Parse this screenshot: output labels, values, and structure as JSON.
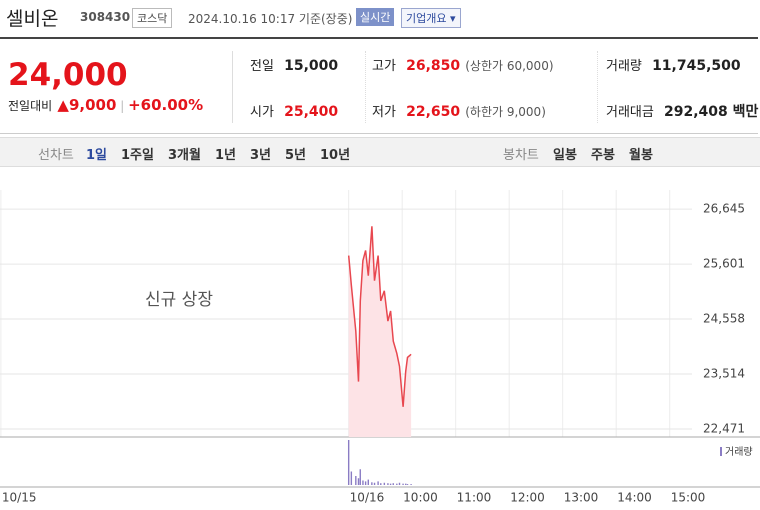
{
  "header": {
    "name": "셀비온",
    "code": "308430",
    "market": "코스닥",
    "timestamp": "2024.10.16 10:17 기준(장중)",
    "realtime": "실시간",
    "company": "기업개요"
  },
  "quote": {
    "price": "24,000",
    "change_label": "전일대비",
    "change": "9,000",
    "change_pct": "+60.00%"
  },
  "stats": [
    {
      "label": "전일",
      "value": "15,000"
    },
    {
      "label": "고가",
      "value": "26,850",
      "note": "(상한가 60,000)"
    },
    {
      "label": "거래량",
      "value": "11,745,500"
    },
    {
      "label": "시가",
      "value": "25,400"
    },
    {
      "label": "저가",
      "value": "22,650",
      "note": "(하한가 9,000)"
    },
    {
      "label": "거래대금",
      "value": "292,408 백만"
    }
  ],
  "tabs": {
    "line_label": "선차트",
    "line": [
      "1일",
      "1주일",
      "3개월",
      "1년",
      "3년",
      "5년",
      "10년"
    ],
    "candle_label": "봉차트",
    "candle": [
      "일봉",
      "주봉",
      "월봉"
    ]
  },
  "chart_data": [
    {
      "type": "line",
      "annotation": "신규 상장",
      "color": "#e8474f",
      "area_color": "#fde3e6",
      "x": [
        0,
        3,
        8,
        11,
        13,
        16,
        19,
        22,
        26,
        29,
        33,
        36,
        40,
        44,
        47,
        50,
        54,
        57,
        61,
        64,
        66,
        70
      ],
      "values": [
        25764,
        25190,
        24328,
        23371,
        24903,
        25668,
        25860,
        25381,
        26320,
        25286,
        25764,
        24903,
        25094,
        24520,
        24711,
        24137,
        23907,
        23658,
        22892,
        23562,
        23830,
        23888
      ],
      "xlim": [
        -391,
        385
      ],
      "xticks": [
        {
          "value": -390,
          "label": "10/15"
        },
        {
          "value": 0,
          "label": "10/16"
        },
        {
          "value": 60,
          "label": "10:00"
        },
        {
          "value": 120,
          "label": "11:00"
        },
        {
          "value": 180,
          "label": "12:00"
        },
        {
          "value": 240,
          "label": "13:00"
        },
        {
          "value": 300,
          "label": "14:00"
        },
        {
          "value": 360,
          "label": "15:00"
        }
      ],
      "ylim": [
        22318,
        27009
      ],
      "yticks": [
        {
          "value": 26645,
          "label": "26,645"
        },
        {
          "value": 25601,
          "label": "25,601"
        },
        {
          "value": 24558,
          "label": "24,558"
        },
        {
          "value": 23514,
          "label": "23,514"
        },
        {
          "value": 22471,
          "label": "22,471"
        }
      ],
      "grid": true
    },
    {
      "type": "bar",
      "series": [
        {
          "name": "거래량",
          "color": "#8a7cc4",
          "values": [
            100,
            30,
            20,
            15,
            35,
            10,
            8,
            12,
            6,
            5,
            8,
            4,
            5,
            4,
            3,
            4,
            3,
            5,
            3,
            3,
            2,
            2
          ]
        }
      ],
      "ylim": [
        0,
        100
      ]
    }
  ]
}
